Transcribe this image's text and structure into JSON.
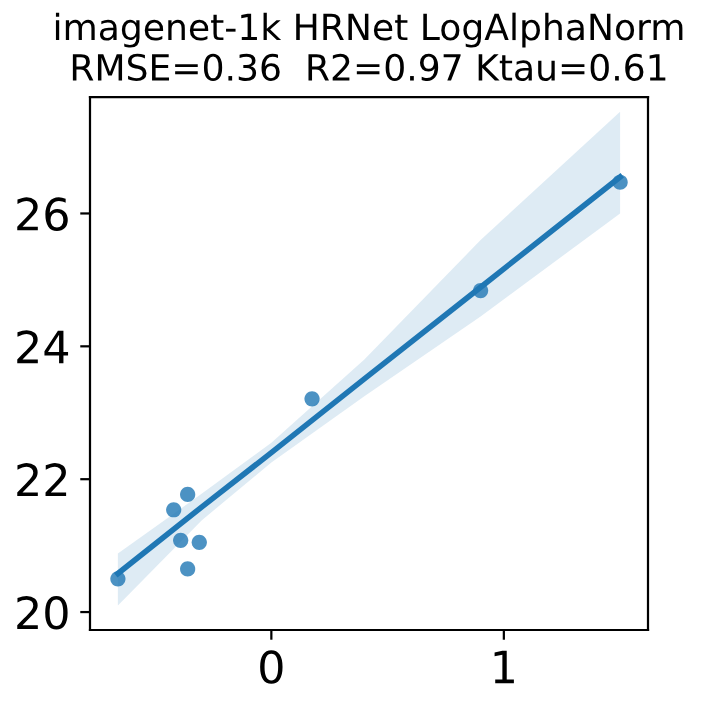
{
  "chart_data": {
    "type": "scatter",
    "title": "imagenet-1k HRNet LogAlphaNorm\nRMSE=0.36  R2=0.97 Ktau=0.61",
    "xlim": [
      -0.78,
      1.62
    ],
    "ylim": [
      19.73,
      27.75
    ],
    "xticks": [
      0,
      1
    ],
    "yticks": [
      20,
      22,
      24,
      26
    ],
    "grid": false,
    "series": [
      {
        "marker": "circle",
        "color": "#1f77b4",
        "x": [
          -0.66,
          -0.42,
          -0.36,
          -0.39,
          -0.31,
          -0.36,
          0.175,
          0.9,
          1.5
        ],
        "values": [
          20.5,
          21.54,
          21.77,
          21.08,
          21.05,
          20.65,
          23.21,
          24.84,
          26.47
        ]
      },
      {
        "type": "line",
        "color": "#1f77b4",
        "x": [
          -0.66,
          -0.3,
          0,
          0.4,
          0.9,
          1.5
        ],
        "values": [
          20.58,
          21.58,
          22.4,
          23.51,
          24.89,
          26.55
        ],
        "lower": [
          20.1,
          21.38,
          22.25,
          23.25,
          24.45,
          26.0
        ],
        "upper": [
          20.88,
          21.78,
          22.55,
          23.8,
          25.6,
          27.53
        ]
      }
    ]
  }
}
